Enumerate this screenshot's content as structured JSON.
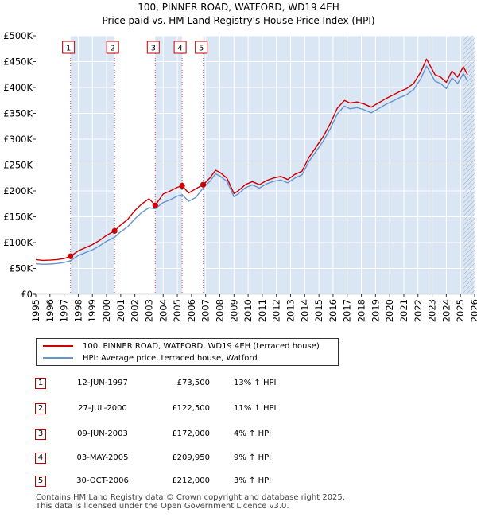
{
  "title": {
    "line1": "100, PINNER ROAD, WATFORD, WD19 4EH",
    "line2": "Price paid vs. HM Land Registry's House Price Index (HPI)"
  },
  "colors": {
    "price_line": "#cc0000",
    "hpi_line": "#6495cd",
    "band": "#dbe6f5",
    "marker_line": "#d06060",
    "grid": "#ffffff"
  },
  "legend": {
    "price_label": "100, PINNER ROAD, WATFORD, WD19 4EH (terraced house)",
    "hpi_label": "HPI: Average price, terraced house, Watford"
  },
  "sales": [
    {
      "num": "1",
      "date": "12-JUN-1997",
      "price": "£73,500",
      "hpi": "13% ↑ HPI"
    },
    {
      "num": "2",
      "date": "27-JUL-2000",
      "price": "£122,500",
      "hpi": "11% ↑ HPI"
    },
    {
      "num": "3",
      "date": "09-JUN-2003",
      "price": "£172,000",
      "hpi": "4% ↑ HPI"
    },
    {
      "num": "4",
      "date": "03-MAY-2005",
      "price": "£209,950",
      "hpi": "9% ↑ HPI"
    },
    {
      "num": "5",
      "date": "30-OCT-2006",
      "price": "£212,000",
      "hpi": "3% ↑ HPI"
    }
  ],
  "footer": {
    "line1": "Contains HM Land Registry data © Crown copyright and database right 2025.",
    "line2": "This data is licensed under the Open Government Licence v3.0."
  },
  "chart_data": {
    "type": "line",
    "title": "Price paid vs. HM Land Registry's House Price Index (HPI)",
    "xlim": [
      1995,
      2026
    ],
    "ylim": [
      0,
      500000
    ],
    "x_ticks": [
      1995,
      1996,
      1997,
      1998,
      1999,
      2000,
      2001,
      2002,
      2003,
      2004,
      2005,
      2006,
      2007,
      2008,
      2009,
      2010,
      2011,
      2012,
      2013,
      2014,
      2015,
      2016,
      2017,
      2018,
      2019,
      2020,
      2021,
      2022,
      2023,
      2024,
      2025,
      2026
    ],
    "y_ticks": [
      0,
      50000,
      100000,
      150000,
      200000,
      250000,
      300000,
      350000,
      400000,
      450000,
      500000
    ],
    "y_tick_labels": [
      "£0",
      "£50K",
      "£100K",
      "£150K",
      "£200K",
      "£250K",
      "£300K",
      "£350K",
      "£400K",
      "£450K",
      "£500K"
    ],
    "sale_markers": [
      {
        "label": "1",
        "x": 1997.45,
        "y": 73500
      },
      {
        "label": "2",
        "x": 2000.57,
        "y": 122500
      },
      {
        "label": "3",
        "x": 2003.44,
        "y": 172000
      },
      {
        "label": "4",
        "x": 2005.34,
        "y": 209950
      },
      {
        "label": "5",
        "x": 2006.83,
        "y": 212000
      }
    ],
    "shaded_bands": [
      [
        1997.45,
        2000.57
      ],
      [
        2003.44,
        2005.34
      ],
      [
        2006.83,
        2026
      ]
    ],
    "hatch_from": 2025.2,
    "series": [
      {
        "name": "100, PINNER ROAD, WATFORD, WD19 4EH (terraced house)",
        "x": [
          1995,
          1995.5,
          1996,
          1996.5,
          1997,
          1997.45,
          1998,
          1998.5,
          1999,
          1999.5,
          2000,
          2000.57,
          2001,
          2001.5,
          2002,
          2002.5,
          2003,
          2003.44,
          2004,
          2004.5,
          2005,
          2005.34,
          2005.8,
          2006.3,
          2006.83,
          2007.3,
          2007.7,
          2008,
          2008.5,
          2009,
          2009.3,
          2009.8,
          2010.3,
          2010.8,
          2011.3,
          2011.8,
          2012.3,
          2012.8,
          2013.3,
          2013.8,
          2014.3,
          2014.8,
          2015.3,
          2015.8,
          2016.3,
          2016.8,
          2017.2,
          2017.7,
          2018.2,
          2018.7,
          2019.2,
          2019.7,
          2020.2,
          2020.7,
          2021.2,
          2021.7,
          2022.2,
          2022.6,
          2022.9,
          2023.2,
          2023.6,
          2024,
          2024.4,
          2024.8,
          2025.2,
          2025.5
        ],
        "values": [
          67000,
          65500,
          66000,
          67000,
          69000,
          73500,
          84000,
          90000,
          96000,
          104000,
          114000,
          122500,
          134000,
          145000,
          162000,
          175000,
          185000,
          172000,
          194000,
          200000,
          207000,
          209950,
          196000,
          204000,
          212000,
          225000,
          240000,
          236000,
          225000,
          195000,
          200000,
          212000,
          218000,
          212000,
          220000,
          225000,
          228000,
          222000,
          232000,
          238000,
          265000,
          285000,
          305000,
          330000,
          360000,
          375000,
          370000,
          372000,
          368000,
          362000,
          370000,
          378000,
          385000,
          392000,
          398000,
          408000,
          430000,
          455000,
          440000,
          425000,
          420000,
          410000,
          432000,
          420000,
          440000,
          425000
        ]
      },
      {
        "name": "HPI: Average price, terraced house, Watford",
        "x": [
          1995,
          1995.5,
          1996,
          1996.5,
          1997,
          1997.45,
          1998,
          1998.5,
          1999,
          1999.5,
          2000,
          2000.57,
          2001,
          2001.5,
          2002,
          2002.5,
          2003,
          2003.44,
          2004,
          2004.5,
          2005,
          2005.34,
          2005.8,
          2006.3,
          2006.83,
          2007.3,
          2007.7,
          2008,
          2008.5,
          2009,
          2009.3,
          2009.8,
          2010.3,
          2010.8,
          2011.3,
          2011.8,
          2012.3,
          2012.8,
          2013.3,
          2013.8,
          2014.3,
          2014.8,
          2015.3,
          2015.8,
          2016.3,
          2016.8,
          2017.2,
          2017.7,
          2018.2,
          2018.7,
          2019.2,
          2019.7,
          2020.2,
          2020.7,
          2021.2,
          2021.7,
          2022.2,
          2022.6,
          2022.9,
          2023.2,
          2023.6,
          2024,
          2024.4,
          2024.8,
          2025.2,
          2025.5
        ],
        "values": [
          59000,
          58000,
          58500,
          59500,
          61500,
          65000,
          75000,
          80500,
          86000,
          93500,
          102500,
          110500,
          121000,
          131000,
          146000,
          158500,
          167500,
          165500,
          177500,
          183000,
          190000,
          192500,
          180000,
          187000,
          206000,
          218500,
          233000,
          229000,
          218500,
          189000,
          194000,
          206000,
          211500,
          205500,
          213500,
          218500,
          221000,
          215500,
          225000,
          231000,
          257000,
          276500,
          296000,
          320000,
          349000,
          364000,
          359000,
          361000,
          357000,
          351000,
          359000,
          367000,
          373500,
          380500,
          386000,
          396000,
          417000,
          441500,
          427000,
          412500,
          407500,
          398000,
          419000,
          407500,
          427000,
          412500
        ]
      }
    ]
  }
}
